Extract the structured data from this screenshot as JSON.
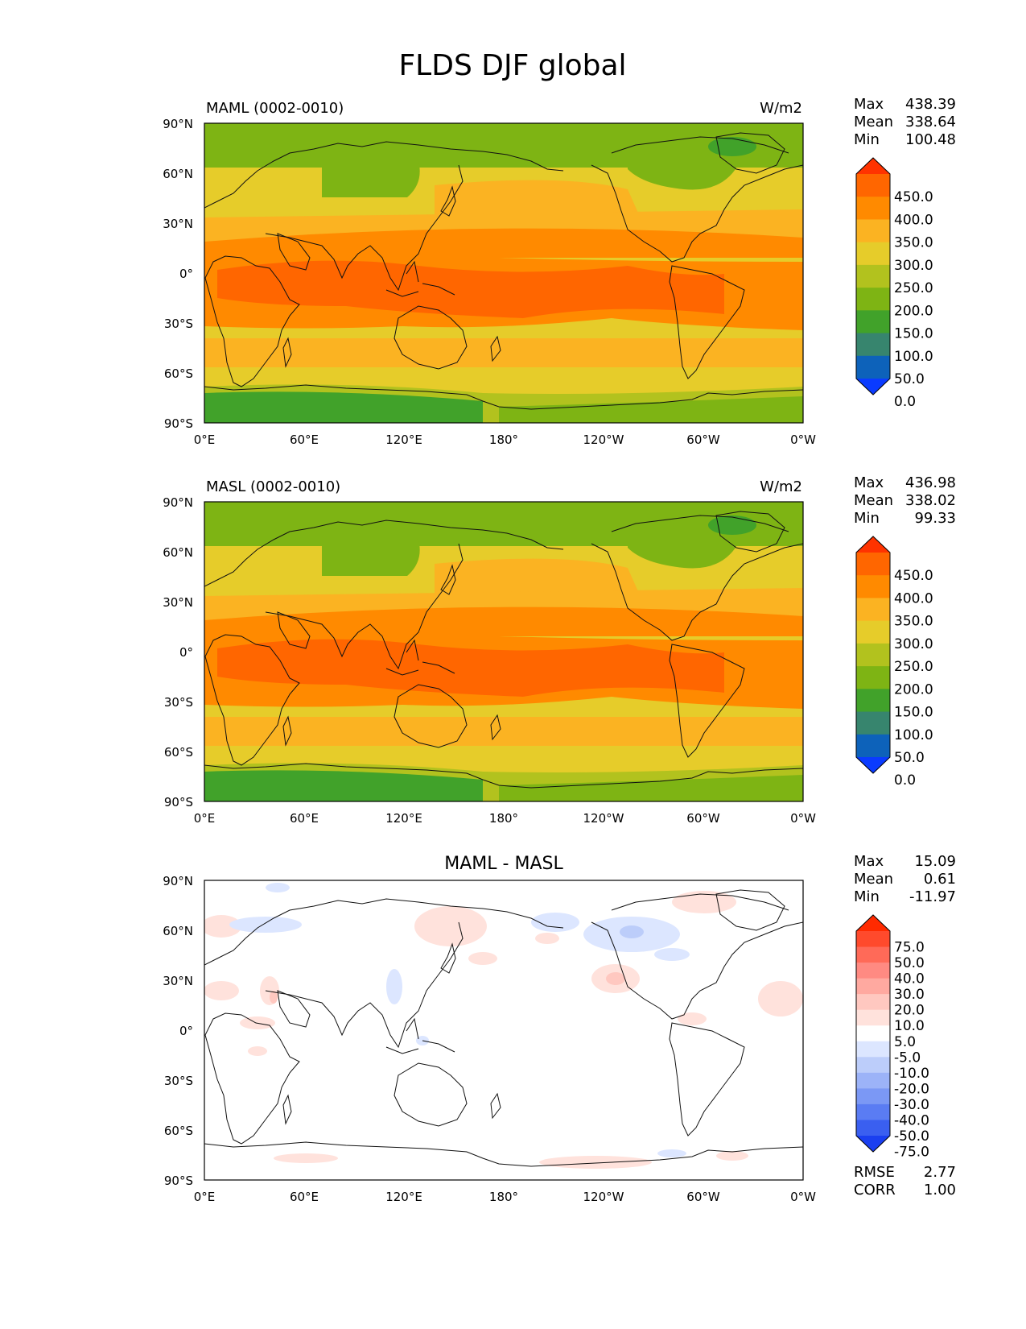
{
  "figure": {
    "title": "FLDS DJF global",
    "x_ticks": [
      "0°E",
      "60°E",
      "120°E",
      "180°",
      "120°W",
      "60°W",
      "0°W"
    ],
    "y_ticks": [
      "90°N",
      "60°N",
      "30°N",
      "0°",
      "30°S",
      "60°S",
      "90°S"
    ]
  },
  "panels": [
    {
      "id": "maml",
      "left_title": "MAML (0002-0010)",
      "right_title": "W/m2",
      "center_title": "",
      "stats": [
        {
          "label": "Max",
          "value": "438.39"
        },
        {
          "label": "Mean",
          "value": "338.64"
        },
        {
          "label": "Min",
          "value": "100.48"
        }
      ],
      "colorbar": {
        "labels": [
          "450.0",
          "400.0",
          "350.0",
          "300.0",
          "250.0",
          "200.0",
          "150.0",
          "100.0",
          "50.0",
          "0.0"
        ],
        "colors": [
          "#ff3300",
          "#ff6600",
          "#ff8a00",
          "#fbb322",
          "#e6cc2a",
          "#b2c21e",
          "#7eb414",
          "#41a22a",
          "#37856e",
          "#0d62ba",
          "#0a3bff"
        ]
      }
    },
    {
      "id": "masl",
      "left_title": "MASL (0002-0010)",
      "right_title": "W/m2",
      "center_title": "",
      "stats": [
        {
          "label": "Max",
          "value": "436.98"
        },
        {
          "label": "Mean",
          "value": "338.02"
        },
        {
          "label": "Min",
          "value": "99.33"
        }
      ],
      "colorbar": {
        "labels": [
          "450.0",
          "400.0",
          "350.0",
          "300.0",
          "250.0",
          "200.0",
          "150.0",
          "100.0",
          "50.0",
          "0.0"
        ],
        "colors": [
          "#ff3300",
          "#ff6600",
          "#ff8a00",
          "#fbb322",
          "#e6cc2a",
          "#b2c21e",
          "#7eb414",
          "#41a22a",
          "#37856e",
          "#0d62ba",
          "#0a3bff"
        ]
      }
    },
    {
      "id": "diff",
      "left_title": "",
      "right_title": "",
      "center_title": "MAML - MASL",
      "stats": [
        {
          "label": "Max",
          "value": "15.09"
        },
        {
          "label": "Mean",
          "value": "0.61"
        },
        {
          "label": "Min",
          "value": "-11.97"
        }
      ],
      "footer_stats": [
        {
          "label": "RMSE",
          "value": "2.77"
        },
        {
          "label": "CORR",
          "value": "1.00"
        }
      ],
      "colorbar": {
        "labels": [
          "75.0",
          "50.0",
          "40.0",
          "30.0",
          "20.0",
          "10.0",
          "5.0",
          "-5.0",
          "-10.0",
          "-20.0",
          "-30.0",
          "-40.0",
          "-50.0",
          "-75.0"
        ],
        "colors": [
          "#ff2a00",
          "#ff4a2c",
          "#ff6a58",
          "#ff8a82",
          "#ffa9a0",
          "#ffc8c0",
          "#ffe2dc",
          "#ffffff",
          "#dce6ff",
          "#bccdfa",
          "#9cb3f8",
          "#7b98f5",
          "#5a7cf3",
          "#3a5ff0",
          "#1a3ff0"
        ]
      }
    }
  ]
}
